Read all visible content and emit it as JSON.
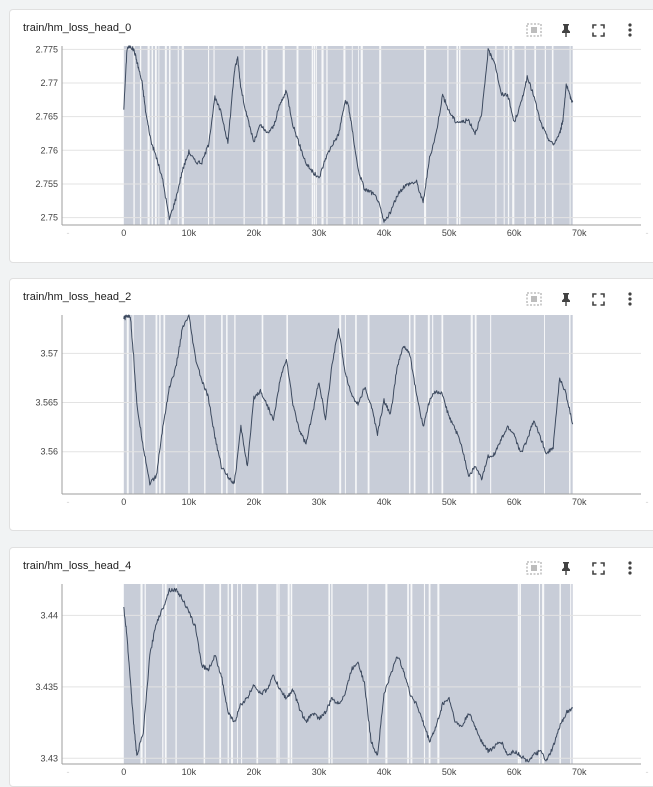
{
  "icons": [
    "data-selection-icon",
    "pin-icon",
    "fullscreen-icon",
    "more-vert-icon"
  ],
  "colors": {
    "line": "#3d4a5f",
    "band": "#c8cdd8",
    "grid": "#e3e3e3",
    "axis": "#9e9e9e"
  },
  "x_tick_labels": [
    "0",
    "10k",
    "20k",
    "30k",
    "40k",
    "50k",
    "60k",
    "70k"
  ],
  "chart_data": [
    {
      "type": "line",
      "title": "train/hm_loss_head_0",
      "x_ticks": [
        0,
        10000,
        20000,
        30000,
        40000,
        50000,
        60000,
        70000
      ],
      "y_ticks": [
        2.75,
        2.755,
        2.76,
        2.765,
        2.77,
        2.775
      ],
      "y_tick_labels": [
        "2.75",
        "2.755",
        "2.76",
        "2.765",
        "2.77",
        "2.775"
      ],
      "xlim": [
        -9500,
        79500
      ],
      "ylim": [
        2.7489,
        2.7755
      ],
      "x": [
        0,
        500,
        1000,
        1600,
        2200,
        2800,
        3400,
        4200,
        5000,
        6000,
        7000,
        8000,
        9000,
        10000,
        11000,
        12000,
        13000,
        14000,
        15000,
        16000,
        17000,
        17500,
        18000,
        19000,
        20000,
        21000,
        22000,
        23000,
        24000,
        25000,
        26000,
        27000,
        28000,
        29000,
        30000,
        31000,
        32000,
        33000,
        34000,
        34500,
        35000,
        36000,
        37000,
        38000,
        39000,
        40000,
        41000,
        42000,
        43000,
        44000,
        45000,
        46000,
        47000,
        48000,
        49000,
        50000,
        51000,
        52000,
        53000,
        54000,
        55000,
        56000,
        57000,
        58000,
        59000,
        60000,
        61000,
        62000,
        63000,
        64000,
        65000,
        66000,
        67000,
        67500,
        68000,
        68500,
        69000
      ],
      "values": [
        2.7662,
        2.7752,
        2.7755,
        2.7748,
        2.7725,
        2.7701,
        2.7655,
        2.7613,
        2.759,
        2.7555,
        2.7498,
        2.7528,
        2.757,
        2.7598,
        2.7583,
        2.7582,
        2.7608,
        2.7678,
        2.7655,
        2.7611,
        2.7718,
        2.7738,
        2.7692,
        2.7648,
        2.7612,
        2.7638,
        2.7625,
        2.7635,
        2.7668,
        2.7688,
        2.7638,
        2.7608,
        2.7581,
        2.7568,
        2.7558,
        2.7588,
        2.7608,
        2.7623,
        2.7672,
        2.7668,
        2.7638,
        2.7572,
        2.7542,
        2.7538,
        2.7528,
        2.7493,
        2.7508,
        2.7532,
        2.7546,
        2.7551,
        2.7553,
        2.7522,
        2.7588,
        2.7625,
        2.7682,
        2.7658,
        2.7643,
        2.7642,
        2.7645,
        2.7626,
        2.7652,
        2.7748,
        2.7732,
        2.7683,
        2.7683,
        2.7641,
        2.7668,
        2.7708,
        2.7682,
        2.7643,
        2.7621,
        2.7608,
        2.7625,
        2.7645,
        2.7698,
        2.7682,
        2.7672
      ]
    },
    {
      "type": "line",
      "title": "train/hm_loss_head_2",
      "x_ticks": [
        0,
        10000,
        20000,
        30000,
        40000,
        50000,
        60000,
        70000
      ],
      "y_ticks": [
        3.56,
        3.565,
        3.57
      ],
      "y_tick_labels": [
        "3.56",
        "3.565",
        "3.57"
      ],
      "xlim": [
        -9500,
        79500
      ],
      "ylim": [
        3.5557,
        3.5739
      ],
      "x": [
        0,
        500,
        1000,
        1500,
        2000,
        3000,
        4000,
        5000,
        6000,
        7000,
        8000,
        9000,
        10000,
        11000,
        12000,
        13000,
        14000,
        15000,
        16000,
        17000,
        18000,
        19000,
        20000,
        21000,
        22000,
        23000,
        24000,
        25000,
        26000,
        27000,
        28000,
        29000,
        30000,
        31000,
        32000,
        33000,
        34000,
        35000,
        36000,
        37000,
        38000,
        39000,
        40000,
        41000,
        42000,
        43000,
        44000,
        45000,
        46000,
        47000,
        48000,
        49000,
        50000,
        51000,
        52000,
        53000,
        54000,
        55000,
        56000,
        57000,
        58000,
        59000,
        60000,
        61000,
        62000,
        63000,
        64000,
        65000,
        66000,
        67000,
        68000,
        69000
      ],
      "values": [
        3.5735,
        3.5738,
        3.5738,
        3.5698,
        3.5648,
        3.5605,
        3.5568,
        3.5575,
        3.5625,
        3.5665,
        3.5685,
        3.5725,
        3.5738,
        3.5695,
        3.5672,
        3.5655,
        3.5615,
        3.5585,
        3.5575,
        3.5568,
        3.5625,
        3.5585,
        3.5655,
        3.5662,
        3.5648,
        3.5632,
        3.5672,
        3.5695,
        3.5648,
        3.5622,
        3.5608,
        3.5638,
        3.5672,
        3.5632,
        3.5688,
        3.5725,
        3.5682,
        3.5658,
        3.5648,
        3.5665,
        3.5648,
        3.5618,
        3.5652,
        3.5638,
        3.5685,
        3.5708,
        3.5698,
        3.5658,
        3.5625,
        3.5652,
        3.5662,
        3.5658,
        3.5635,
        3.5622,
        3.5605,
        3.5575,
        3.5585,
        3.5572,
        3.5595,
        3.5598,
        3.5612,
        3.5625,
        3.5618,
        3.5598,
        3.5612,
        3.5632,
        3.5615,
        3.5598,
        3.5605,
        3.5675,
        3.5658,
        3.5628
      ]
    },
    {
      "type": "line",
      "title": "train/hm_loss_head_4",
      "x_ticks": [
        0,
        10000,
        20000,
        30000,
        40000,
        50000,
        60000,
        70000
      ],
      "y_ticks": [
        3.43,
        3.435,
        3.44
      ],
      "y_tick_labels": [
        "3.43",
        "3.435",
        "3.44"
      ],
      "xlim": [
        -9500,
        79500
      ],
      "ylim": [
        3.4296,
        3.4422
      ],
      "x": [
        0,
        500,
        1000,
        1500,
        2000,
        3000,
        4000,
        5000,
        6000,
        7000,
        8000,
        9000,
        10000,
        11000,
        12000,
        13000,
        14000,
        15000,
        16000,
        17000,
        18000,
        19000,
        20000,
        21000,
        22000,
        23000,
        24000,
        25000,
        26000,
        27000,
        28000,
        29000,
        30000,
        31000,
        32000,
        33000,
        34000,
        35000,
        36000,
        37000,
        38000,
        39000,
        40000,
        41000,
        42000,
        43000,
        44000,
        45000,
        46000,
        47000,
        48000,
        49000,
        50000,
        51000,
        52000,
        53000,
        54000,
        55000,
        56000,
        57000,
        58000,
        59000,
        60000,
        61000,
        62000,
        63000,
        64000,
        65000,
        66000,
        67000,
        68000,
        69000
      ],
      "values": [
        3.4405,
        3.4385,
        3.4355,
        3.4325,
        3.4302,
        3.4318,
        3.4372,
        3.4395,
        3.4405,
        3.4418,
        3.4418,
        3.4412,
        3.4402,
        3.4392,
        3.4365,
        3.4362,
        3.4372,
        3.4358,
        3.4332,
        3.4325,
        3.4338,
        3.4342,
        3.4352,
        3.4345,
        3.4348,
        3.4358,
        3.4348,
        3.4342,
        3.4348,
        3.4335,
        3.4325,
        3.4332,
        3.4328,
        3.4332,
        3.4342,
        3.4338,
        3.4345,
        3.4362,
        3.4368,
        3.4352,
        3.4312,
        3.4302,
        3.4345,
        3.4358,
        3.4372,
        3.4362,
        3.4345,
        3.4338,
        3.4325,
        3.4312,
        3.4322,
        3.4338,
        3.4342,
        3.4325,
        3.4322,
        3.4332,
        3.4322,
        3.4312,
        3.4305,
        3.4308,
        3.4312,
        3.4302,
        3.4305,
        3.4302,
        3.4298,
        3.4302,
        3.4305,
        3.4298,
        3.4308,
        3.4322,
        3.4332,
        3.4335
      ]
    }
  ]
}
